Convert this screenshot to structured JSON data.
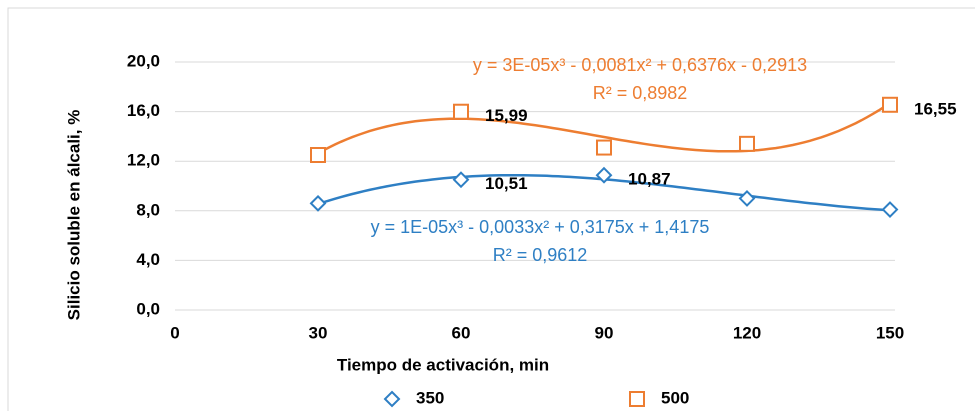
{
  "chart_data": {
    "type": "scatter",
    "x_label": "Tiempo de activación, min",
    "y_label": "Silicio soluble en álcali, %",
    "x": [
      30,
      60,
      90,
      120,
      150
    ],
    "series": [
      {
        "name": "350",
        "color": "#2e7fc4",
        "marker": "diamond",
        "values": [
          8.6,
          10.51,
          10.87,
          9.0,
          8.1
        ],
        "value_labels": [
          null,
          "10,51",
          "10,87",
          null,
          null
        ]
      },
      {
        "name": "500",
        "color": "#ed7d31",
        "marker": "square",
        "values": [
          12.5,
          15.99,
          13.1,
          13.4,
          16.55
        ],
        "value_labels": [
          null,
          "15,99",
          null,
          null,
          "16,55"
        ]
      }
    ],
    "annotations": [
      {
        "text": "y = 3E-05x³ - 0,0081x² + 0,6376x - 0,2913",
        "color": "#ed7d31"
      },
      {
        "text": "R² = 0,8982",
        "color": "#ed7d31"
      },
      {
        "text": "y = 1E-05x³ - 0,0033x² + 0,3175x + 1,4175",
        "color": "#2e7fc4"
      },
      {
        "text": "R² = 0,9612",
        "color": "#2e7fc4"
      }
    ],
    "trendline": "poly3",
    "xlim": [
      0,
      150
    ],
    "xticks": [
      0,
      30,
      60,
      90,
      120,
      150
    ],
    "ylim": [
      0,
      20
    ],
    "yticks": [
      {
        "value": 0,
        "label": "0,0"
      },
      {
        "value": 4,
        "label": "4,0"
      },
      {
        "value": 8,
        "label": "8,0"
      },
      {
        "value": 12,
        "label": "12,0"
      },
      {
        "value": 16,
        "label": "16,0"
      },
      {
        "value": 20,
        "label": "20,0"
      }
    ],
    "grid": true,
    "legend": "bottom"
  }
}
